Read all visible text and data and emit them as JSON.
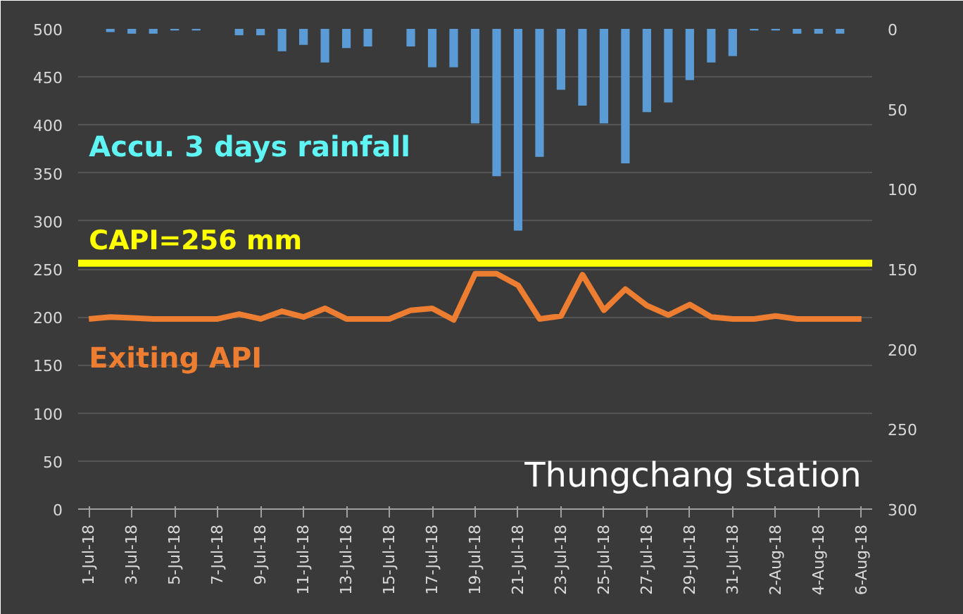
{
  "chart_data": {
    "type": "line",
    "categories": [
      "1-Jul-18",
      null,
      "3-Jul-18",
      null,
      "5-Jul-18",
      null,
      "7-Jul-18",
      null,
      "9-Jul-18",
      null,
      "11-Jul-18",
      null,
      "13-Jul-18",
      null,
      "15-Jul-18",
      null,
      "17-Jul-18",
      null,
      "19-Jul-18",
      null,
      "21-Jul-18",
      null,
      "23-Jul-18",
      null,
      "25-Jul-18",
      null,
      "27-Jul-18",
      null,
      "29-Jul-18",
      null,
      "31-Jul-18",
      null,
      "2-Aug-18",
      null,
      "4-Aug-18",
      null,
      "6-Aug-18"
    ],
    "series": [
      {
        "name": "Accu. 3 days rainfall",
        "type": "bar",
        "axis": "y2",
        "color": "#5b9bd5",
        "values": [
          0,
          2,
          3,
          3,
          1,
          1,
          0,
          4,
          4,
          14,
          10,
          21,
          12,
          11,
          0,
          11,
          24,
          24,
          59,
          92,
          126,
          80,
          38,
          48,
          59,
          84,
          52,
          46,
          32,
          21,
          17,
          1,
          1,
          3,
          3,
          3,
          0
        ]
      },
      {
        "name": "Exiting API",
        "color": "#ed7d31",
        "values": [
          198,
          200,
          199,
          198,
          198,
          198,
          198,
          203,
          198,
          206,
          200,
          209,
          198,
          198,
          198,
          207,
          209,
          197,
          245,
          245,
          233,
          198,
          201,
          244,
          207,
          229,
          212,
          202,
          213,
          200,
          198,
          198,
          201,
          198,
          198,
          198,
          198
        ]
      }
    ],
    "ylim": [
      0,
      500
    ],
    "yticks": [
      0,
      50,
      100,
      150,
      200,
      250,
      300,
      350,
      400,
      450,
      500
    ],
    "y2lim": [
      300,
      0
    ],
    "y2ticks": [
      0,
      50,
      100,
      150,
      200,
      250,
      300
    ],
    "ref_lines": [
      {
        "axis": "y",
        "value": 256,
        "label": "CAPI=256 mm",
        "color": "#ffff00"
      }
    ],
    "annotations": [
      "Thungchang station"
    ],
    "grid": "y"
  }
}
